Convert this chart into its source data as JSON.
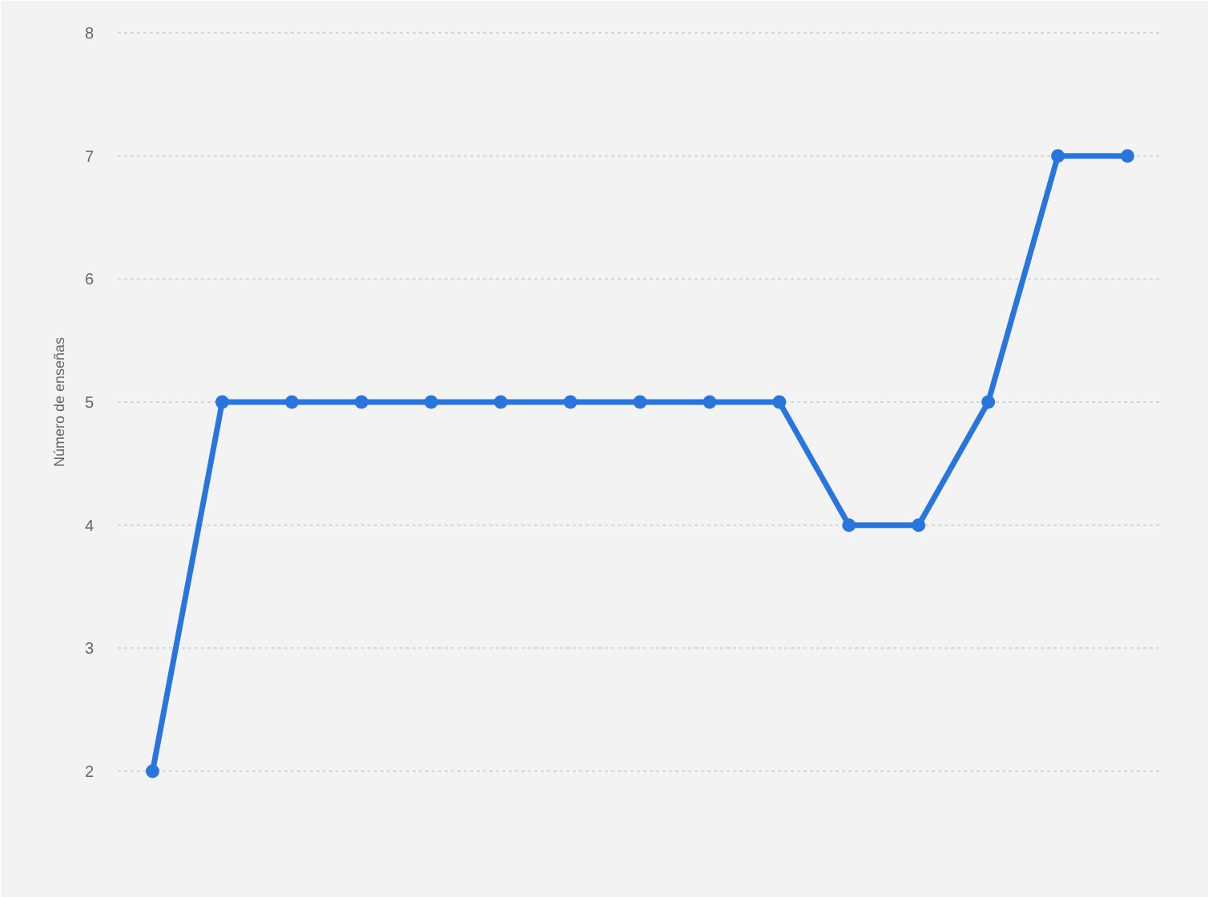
{
  "chart_data": {
    "type": "line",
    "ylabel": "Número de enseñas",
    "categories": [
      null,
      null,
      null,
      null,
      null,
      null,
      null,
      null,
      null,
      null,
      null,
      null,
      null,
      null,
      null
    ],
    "values": [
      2,
      5,
      5,
      5,
      5,
      5,
      5,
      5,
      5,
      5,
      4,
      4,
      5,
      7,
      7
    ],
    "color": "#2876dd",
    "ylim": [
      2,
      8
    ],
    "yticks": [
      2,
      3,
      4,
      5,
      6,
      7,
      8
    ],
    "grid": "y",
    "tick_labels": "y",
    "marker": "circle",
    "line_style": "solid"
  }
}
